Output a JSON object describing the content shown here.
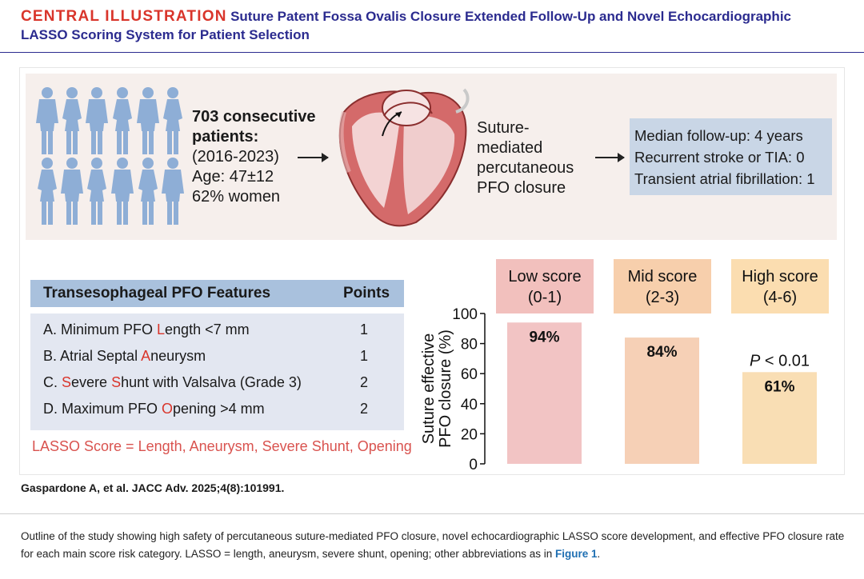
{
  "header": {
    "label": "CENTRAL ILLUSTRATION",
    "title_line1": "Suture Patent Fossa Ovalis Closure Extended Follow-Up and Novel Echocardiographic",
    "title_line2": "LASSO Scoring System for Patient Selection"
  },
  "cohort": {
    "count": "703 consecutive",
    "patients": "patients:",
    "years": "(2016-2023)",
    "age": "Age: 47±12",
    "women": "62% women"
  },
  "procedure": {
    "line1": "Suture-",
    "line2": "mediated",
    "line3": "percutaneous",
    "line4": "PFO closure"
  },
  "outcomes": {
    "followup": "Median follow-up: 4 years",
    "stroke": "Recurrent stroke or TIA: 0",
    "af": "Transient atrial fibrillation: 1"
  },
  "table": {
    "header_features": "Transesophageal PFO Features",
    "header_points": "Points",
    "rows": [
      {
        "pre": "A. Minimum PFO ",
        "hl": "L",
        "post": "ength <7 mm",
        "points": "1"
      },
      {
        "pre": "B. Atrial Septal ",
        "hl": "A",
        "post": "neurysm",
        "points": "1"
      },
      {
        "pre": "C. ",
        "hl": "S",
        "mid": "evere ",
        "hl2": "S",
        "post": "hunt with Valsalva (Grade 3)",
        "points": "2"
      },
      {
        "pre": "D. Maximum PFO ",
        "hl": "O",
        "post": "pening >4 mm",
        "points": "2"
      }
    ],
    "lasso_definition": "LASSO Score = Length, Aneurysm, Severe Shunt, Opening"
  },
  "chart_data": {
    "type": "bar",
    "categories": [
      "Low score\n(0-1)",
      "Mid score\n(2-3)",
      "High score\n(4-6)"
    ],
    "category_names": [
      "Low score",
      "Mid score",
      "High score"
    ],
    "category_ranges": [
      "(0-1)",
      "(2-3)",
      "(4-6)"
    ],
    "values": [
      94,
      84,
      61
    ],
    "value_labels": [
      "94%",
      "84%",
      "61%"
    ],
    "ylabel_line1": "Suture effective",
    "ylabel_line2": "PFO closure (%)",
    "ylim": [
      0,
      100
    ],
    "yticks": [
      0,
      20,
      40,
      60,
      80,
      100
    ],
    "annotation_prefix": "P",
    "annotation_rest": " < 0.01",
    "colors": {
      "bars": [
        "#f2c4c4",
        "#f6d0b6",
        "#f9deb4"
      ],
      "headers": [
        "#f2c0bd",
        "#f7cfac",
        "#fbddb0"
      ]
    },
    "grid": false,
    "legend": "none"
  },
  "citation": "Gaspardone A, et al. JACC Adv. 2025;4(8):101991.",
  "caption": {
    "text": "Outline of the study showing high safety of percutaneous suture-mediated PFO closure, novel echocardiographic LASSO score development, and effective PFO closure rate for each main score risk category. LASSO = length, aneurysm, severe shunt, opening; other abbreviations as in ",
    "link": "Figure 1",
    "end": "."
  },
  "colors": {
    "accent_red": "#d9352b",
    "title_blue": "#2b2b8f",
    "person_blue": "#8eaed6",
    "outcome_box": "#c9d6e6",
    "table_header": "#a9c1dd",
    "table_body": "#e3e7f1",
    "band": "#f6efec"
  }
}
